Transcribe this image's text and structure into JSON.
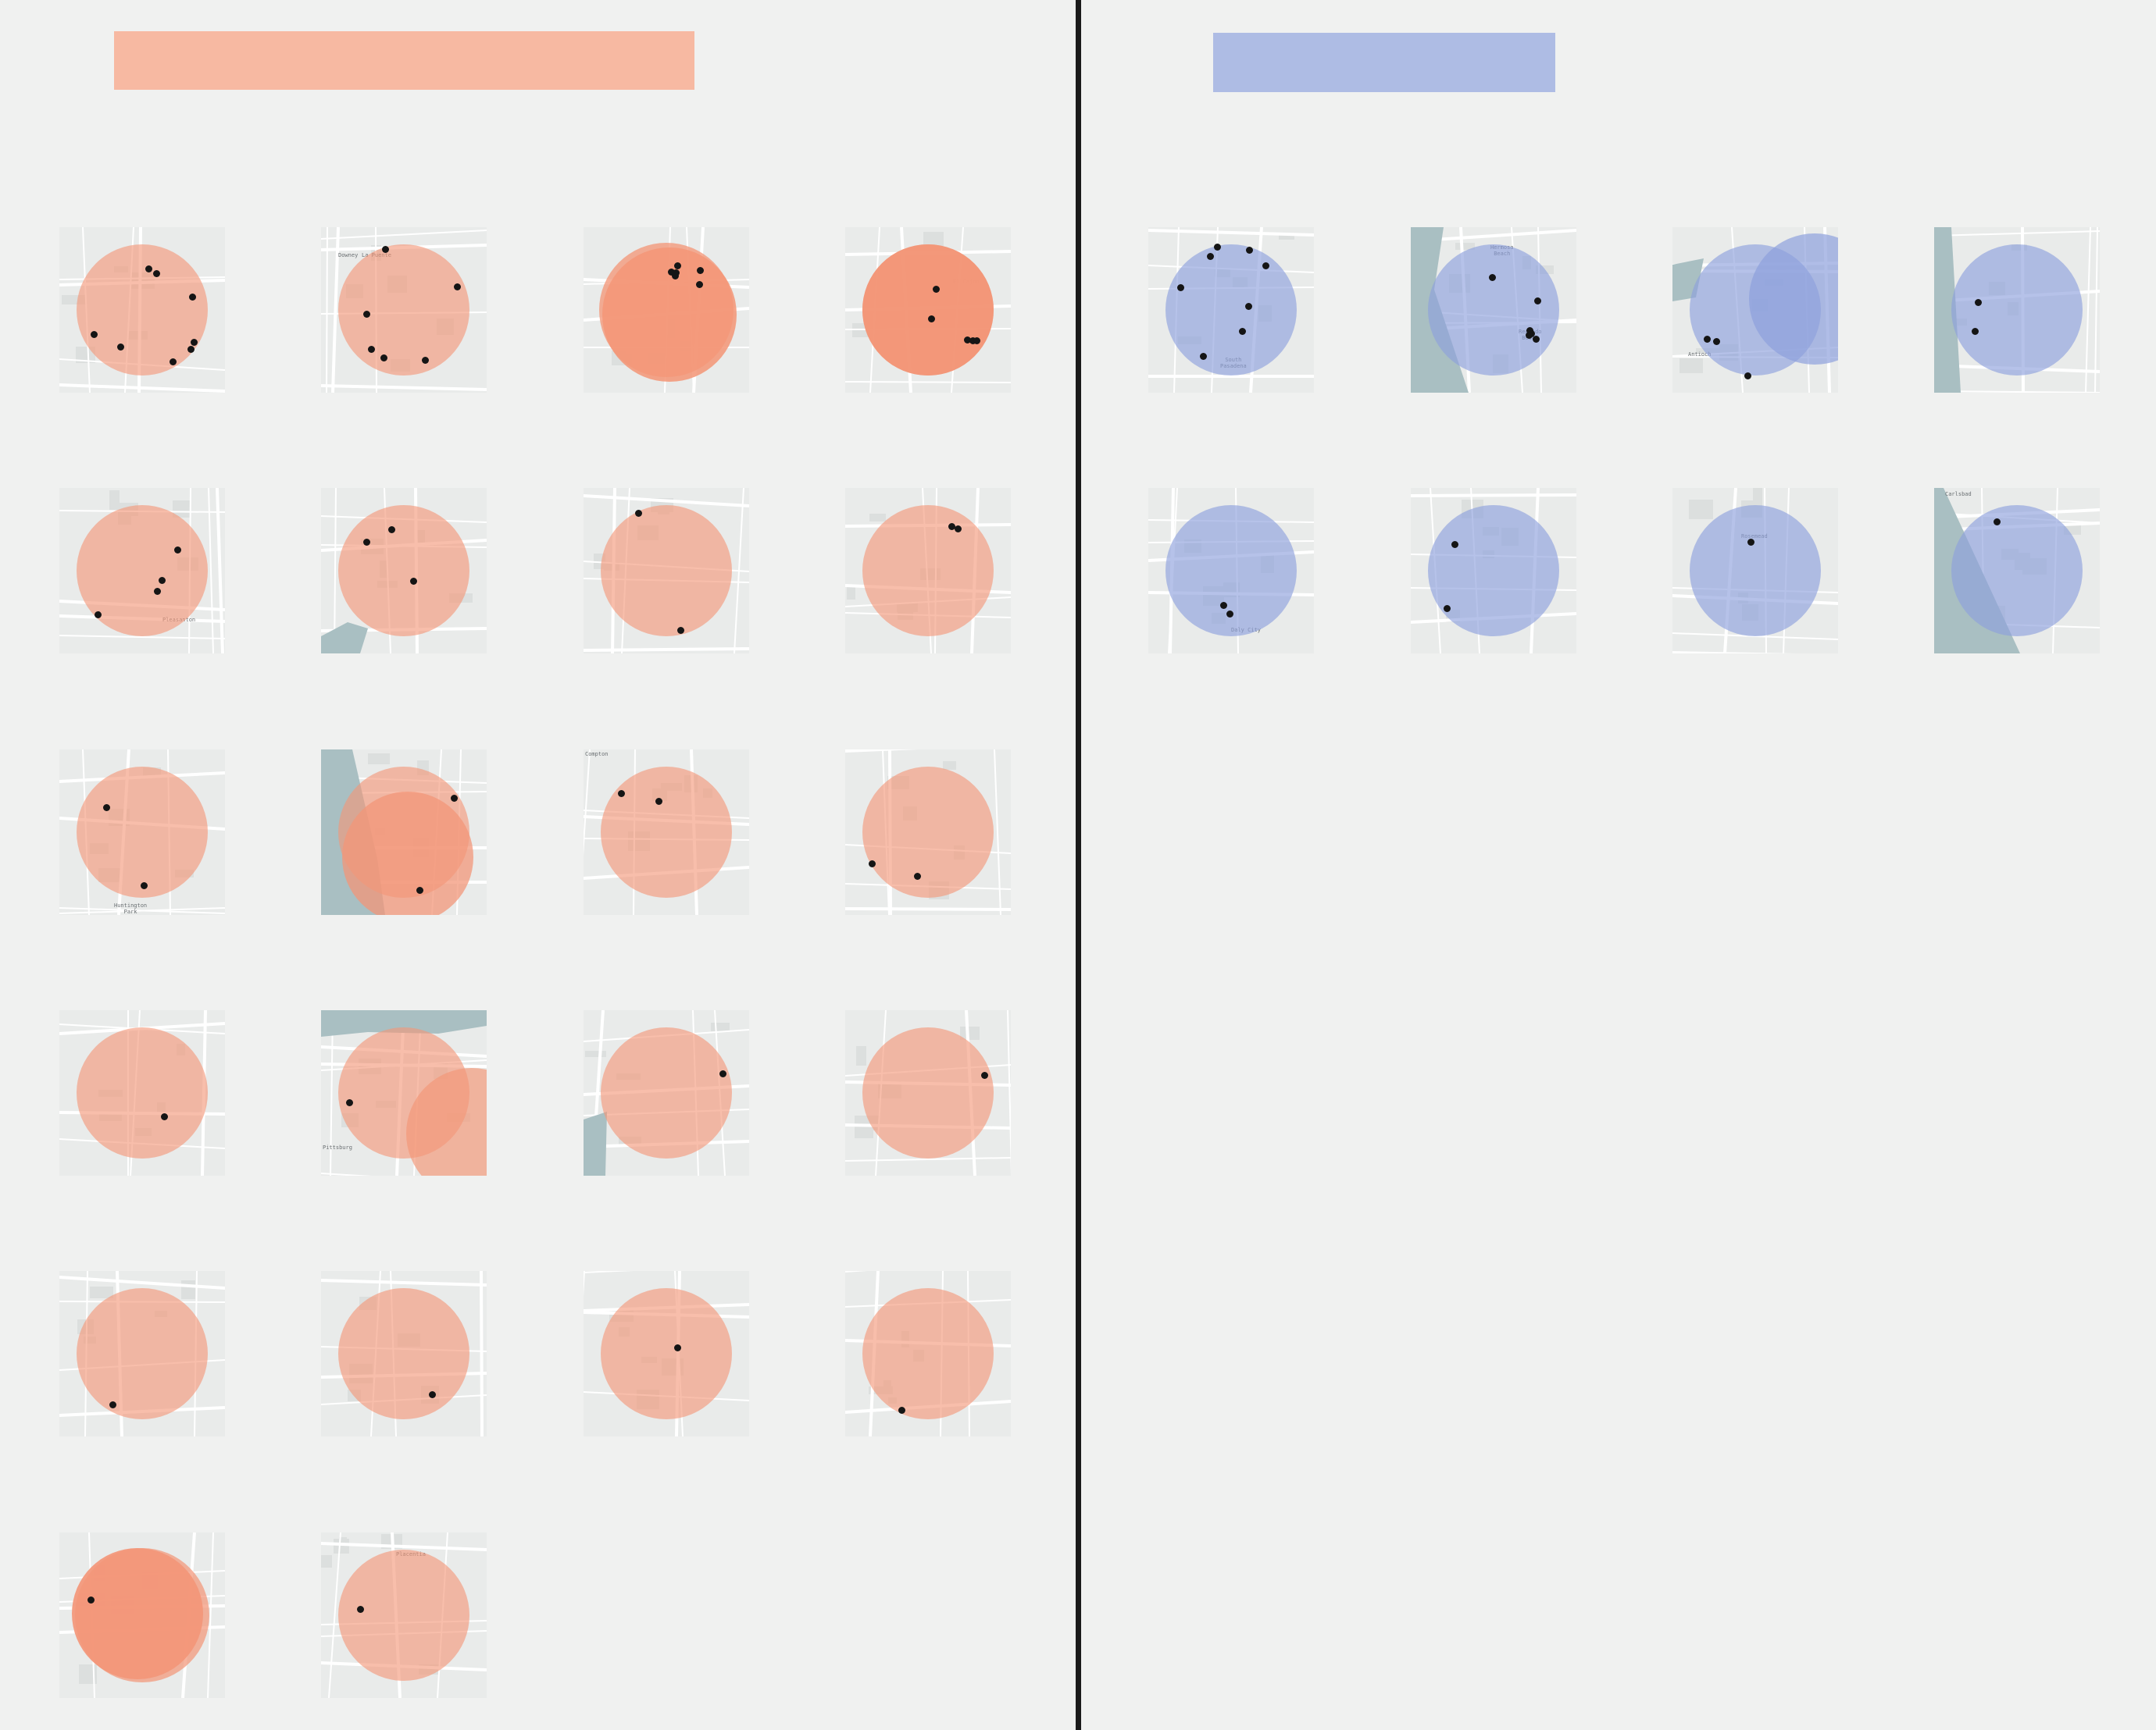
{
  "colors": {
    "background": "#f0f1f0",
    "divider": "#1a1a1a",
    "left_bar": "#f7b9a2",
    "right_bar": "#aebce4",
    "left_circle": "#f39678",
    "left_circle_alpha": 0.62,
    "right_circle": "#8d9fdc",
    "right_circle_alpha": 0.64,
    "water": "#a9bfc2",
    "road": "#ffffff",
    "block": "#dcdfde",
    "dot": "#151515"
  },
  "icons": {
    "marker": "point-marker-icon"
  },
  "left_panel": {
    "tiles": [
      {
        "circles": 1,
        "labels": [],
        "dots": 9,
        "water": false
      },
      {
        "circles": 1,
        "labels": [
          "Downey",
          "La Puente"
        ],
        "dots": 6,
        "water": false
      },
      {
        "circles": 2,
        "labels": [],
        "dots": 6,
        "water": false
      },
      {
        "circles": 2,
        "labels": [
          "El Cajon"
        ],
        "dots": 5,
        "water": false
      },
      {
        "circles": 1,
        "labels": [
          "Pleasanton"
        ],
        "dots": 4,
        "water": false
      },
      {
        "circles": 1,
        "labels": [],
        "dots": 3,
        "water": true
      },
      {
        "circles": 1,
        "labels": [],
        "dots": 2,
        "water": false
      },
      {
        "circles": 1,
        "labels": [],
        "dots": 2,
        "water": false
      },
      {
        "circles": 1,
        "labels": [
          "Huntington\nPark"
        ],
        "dots": 2,
        "water": false
      },
      {
        "circles": 2,
        "labels": [],
        "dots": 2,
        "water": true
      },
      {
        "circles": 1,
        "labels": [
          "Compton"
        ],
        "dots": 2,
        "water": false
      },
      {
        "circles": 1,
        "labels": [],
        "dots": 2,
        "water": false
      },
      {
        "circles": 1,
        "labels": [],
        "dots": 1,
        "water": false
      },
      {
        "circles": 2,
        "labels": [
          "Pittsburg"
        ],
        "dots": 1,
        "water": true
      },
      {
        "circles": 1,
        "labels": [],
        "dots": 1,
        "water": true
      },
      {
        "circles": 1,
        "labels": [],
        "dots": 1,
        "water": false
      },
      {
        "circles": 1,
        "labels": [],
        "dots": 1,
        "water": false
      },
      {
        "circles": 1,
        "labels": [],
        "dots": 1,
        "water": false
      },
      {
        "circles": 1,
        "labels": [],
        "dots": 1,
        "water": false
      },
      {
        "circles": 1,
        "labels": [],
        "dots": 1,
        "water": false
      },
      {
        "circles": 2,
        "labels": [],
        "dots": 1,
        "water": false
      },
      {
        "circles": 1,
        "labels": [
          "Placentia"
        ],
        "dots": 1,
        "water": false
      }
    ]
  },
  "right_panel": {
    "tiles": [
      {
        "circles": 1,
        "labels": [
          "South\nPasadena"
        ],
        "dots": 8,
        "water": false
      },
      {
        "circles": 1,
        "labels": [
          "Hermosa\nBeach",
          "Redondo\nBeach"
        ],
        "dots": 6,
        "water": true
      },
      {
        "circles": 2,
        "labels": [
          "Antioch"
        ],
        "dots": 3,
        "water": true
      },
      {
        "circles": 1,
        "labels": [],
        "dots": 2,
        "water": true
      },
      {
        "circles": 1,
        "labels": [
          "Daly City"
        ],
        "dots": 2,
        "water": false
      },
      {
        "circles": 1,
        "labels": [],
        "dots": 2,
        "water": false
      },
      {
        "circles": 1,
        "labels": [
          "Rosemead"
        ],
        "dots": 1,
        "water": false
      },
      {
        "circles": 1,
        "labels": [
          "Carlsbad"
        ],
        "dots": 1,
        "water": true
      }
    ]
  }
}
